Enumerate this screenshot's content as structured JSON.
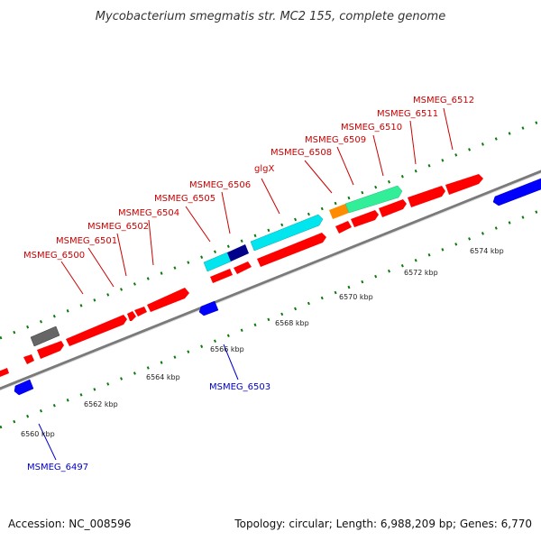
{
  "title": "Mycobacterium smegmatis str. MC2 155, complete genome",
  "footer": {
    "accession": "Accession: NC_008596",
    "summary": "Topology: circular; Length: 6,988,209 bp; Genes: 6,770"
  },
  "colors": {
    "forward_label": "#cc0000",
    "reverse_label": "#0000cc",
    "backbone": "#808080",
    "tick_dots": "#006600",
    "red_gene": "#ff0000",
    "blue_gene": "#0000ff",
    "cyan_gene": "#00e5ee",
    "navy_gene": "#00008b",
    "orange_gene": "#ff8c00",
    "green_gene": "#33ee99",
    "grey_gene": "#666666"
  },
  "axis": {
    "unit": "kbp",
    "labels": [
      {
        "text": "6560 kbp",
        "kbp": 6560
      },
      {
        "text": "6562 kbp",
        "kbp": 6562
      },
      {
        "text": "6564 kbp",
        "kbp": 6564
      },
      {
        "text": "6566 kbp",
        "kbp": 6566
      },
      {
        "text": "6568 kbp",
        "kbp": 6568
      },
      {
        "text": "6570 kbp",
        "kbp": 6570
      },
      {
        "text": "6572 kbp",
        "kbp": 6572
      },
      {
        "text": "6574 kbp",
        "kbp": 6574
      }
    ]
  },
  "gene_labels": {
    "forward": [
      "MSMEG_6500",
      "MSMEG_6501",
      "MSMEG_6502",
      "MSMEG_6504",
      "MSMEG_6505",
      "MSMEG_6506",
      "glgX",
      "MSMEG_6508",
      "MSMEG_6509",
      "MSMEG_6510",
      "MSMEG_6511",
      "MSMEG_6512"
    ],
    "reverse": [
      "MSMEG_6497",
      "MSMEG_6503"
    ]
  }
}
